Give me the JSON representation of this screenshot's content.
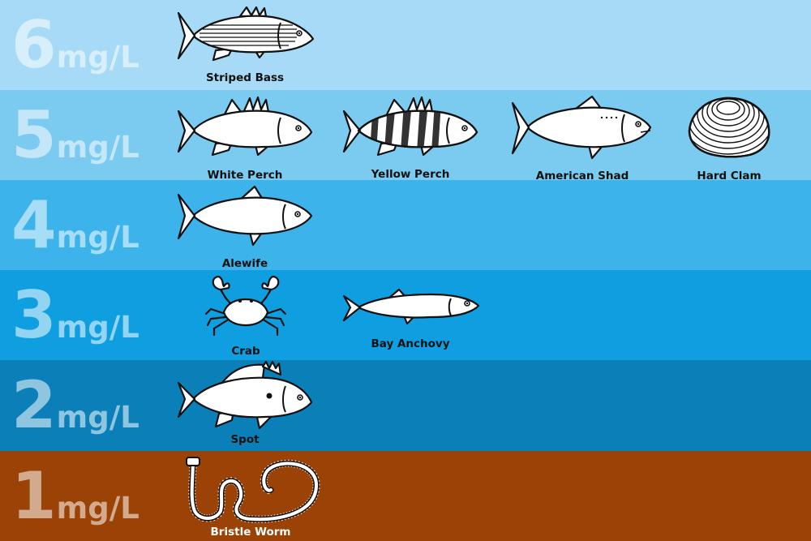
{
  "colors": {
    "band_6": "#a6daf6",
    "band_5": "#7bcbf1",
    "band_4": "#3db3ec",
    "band_3": "#0f9fe0",
    "band_2": "#0a7fb8",
    "band_1": "#9b4306",
    "outline": "#111111",
    "fill": "#ffffff",
    "level_text": "rgba(255,255,255,0.55)"
  },
  "levels": [
    {
      "value": "6",
      "unit": "mg/L",
      "creatures": [
        {
          "name": "Striped Bass",
          "icon": "striped-bass-icon"
        }
      ]
    },
    {
      "value": "5",
      "unit": "mg/L",
      "creatures": [
        {
          "name": "White Perch",
          "icon": "white-perch-icon"
        },
        {
          "name": "Yellow Perch",
          "icon": "yellow-perch-icon"
        },
        {
          "name": "American Shad",
          "icon": "american-shad-icon"
        },
        {
          "name": "Hard Clam",
          "icon": "hard-clam-icon"
        }
      ]
    },
    {
      "value": "4",
      "unit": "mg/L",
      "creatures": [
        {
          "name": "Alewife",
          "icon": "alewife-icon"
        }
      ]
    },
    {
      "value": "3",
      "unit": "mg/L",
      "creatures": [
        {
          "name": "Crab",
          "icon": "crab-icon"
        },
        {
          "name": "Bay Anchovy",
          "icon": "bay-anchovy-icon"
        }
      ]
    },
    {
      "value": "2",
      "unit": "mg/L",
      "creatures": [
        {
          "name": "Spot",
          "icon": "spot-icon"
        }
      ]
    },
    {
      "value": "1",
      "unit": "mg/L",
      "creatures": [
        {
          "name": "Bristle Worm",
          "icon": "bristle-worm-icon"
        }
      ]
    }
  ]
}
